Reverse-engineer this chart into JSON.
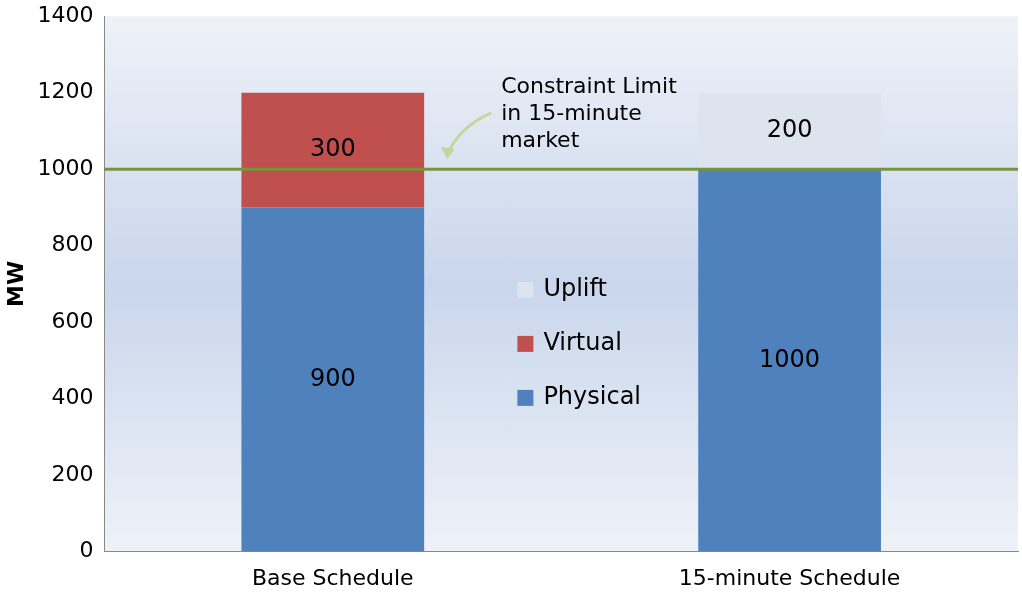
{
  "chart_data": {
    "type": "bar",
    "stacked": true,
    "categories": [
      "Base Schedule",
      "15-minute Schedule"
    ],
    "series": [
      {
        "name": "Physical",
        "color": "#4f81bd",
        "values": [
          900,
          1000
        ]
      },
      {
        "name": "Virtual",
        "color": "#c0504d",
        "values": [
          300,
          null
        ]
      },
      {
        "name": "Uplift",
        "color": "#dde4ee",
        "values": [
          null,
          200
        ]
      }
    ],
    "ylabel": "MW",
    "ylim": [
      0,
      1400
    ],
    "yticks": [
      0,
      200,
      400,
      600,
      800,
      1000,
      1200,
      1400
    ],
    "grid": false,
    "legend": "center",
    "data_labels": true,
    "ref_lines": [
      {
        "axis": "y",
        "value": 1000,
        "label": "Constraint Limit in 15-minute market",
        "color": "#77933c"
      }
    ]
  }
}
